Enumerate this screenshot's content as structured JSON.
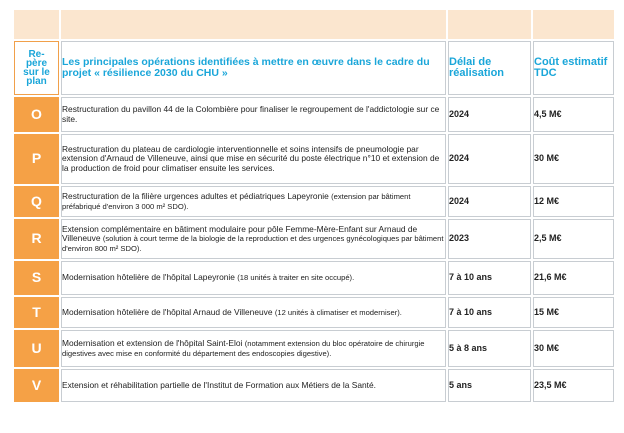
{
  "header": {
    "col1": "Repère sur le plan",
    "col1_lines": [
      "Re-",
      "père",
      "sur le",
      "plan"
    ],
    "col2": "Les principales opérations identifiées à mettre en œuvre dans le cadre du projet « résilience 2030 du CHU »",
    "col3": "Délai de réalisation",
    "col4": "Coût estimatif TDC"
  },
  "rows": [
    {
      "letter": "O",
      "desc_main": "Restructuration du pavillon 44 de la Colombière pour finaliser le regroupement de l'addictologie sur ce site.",
      "desc_note": "",
      "delay": "2024",
      "cost": "4,5 M€"
    },
    {
      "letter": "P",
      "desc_main": "Restructuration du plateau de cardiologie interventionnelle et soins intensifs de pneumologie par extension d'Arnaud de Villeneuve, ainsi que mise en sécurité du poste électrique n°10 et extension de la production de froid pour climatiser ensuite les services.",
      "desc_note": "",
      "delay": "2024",
      "cost": "30 M€"
    },
    {
      "letter": "Q",
      "desc_main": "Restructuration de la filière urgences adultes et pédiatriques Lapeyronie",
      "desc_note": "(extension par bâtiment préfabriqué d'environ 3 000 m² SDO).",
      "delay": "2024",
      "cost": "12 M€"
    },
    {
      "letter": "R",
      "desc_main": "Extension complémentaire en bâtiment modulaire pour pôle Femme-Mère-Enfant sur Arnaud de Villeneuve",
      "desc_note": "(solution à court terme de la biologie de la reproduction et des urgences gynécologiques par bâtiment d'environ 800 m² SDO).",
      "delay": "2023",
      "cost": "2,5 M€"
    },
    {
      "letter": "S",
      "desc_main": "Modernisation hôtelière de l'hôpital Lapeyronie",
      "desc_note": "(18 unités à traiter en site occupé).",
      "delay": "7 à 10 ans",
      "cost": "21,6 M€"
    },
    {
      "letter": "T",
      "desc_main": "Modernisation hôtelière de l'hôpital Arnaud de Villeneuve",
      "desc_note": "(12 unités à climatiser et moderniser).",
      "delay": "7 à 10 ans",
      "cost": "15 M€"
    },
    {
      "letter": "U",
      "desc_main": "Modernisation et extension de l'hôpital Saint-Eloi",
      "desc_note": "(notamment extension du bloc opératoire de chirurgie digestives avec mise en conformité du département des endoscopies digestive).",
      "delay": "5 à 8 ans",
      "cost": "30 M€"
    },
    {
      "letter": "V",
      "desc_main": "Extension et réhabilitation partielle de l'Institut de Formation aux Métiers de la Santé.",
      "desc_note": "",
      "delay": "5 ans",
      "cost": "23,5 M€"
    }
  ],
  "colors": {
    "orange": "#f5a146",
    "band": "#fbe6cf",
    "header_blue": "#1aa6d9",
    "border": "#c8cdd2"
  }
}
